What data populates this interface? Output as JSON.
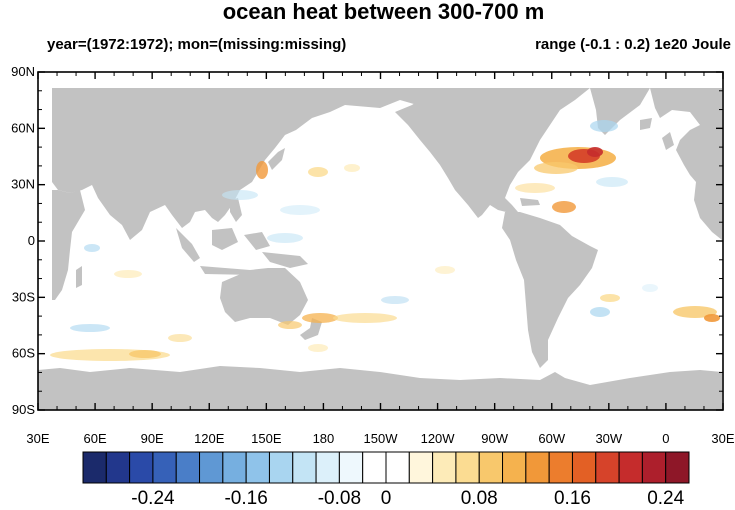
{
  "title": "ocean heat between 300-700 m",
  "subtitle_left": "year=(1972:1972); mon=(missing:missing)",
  "subtitle_right": "range (-0.1 : 0.2) 1e20 Joule",
  "lat_labels": [
    "90N",
    "60N",
    "30N",
    "0",
    "30S",
    "60S",
    "90S"
  ],
  "lon_labels": [
    "30E",
    "60E",
    "90E",
    "120E",
    "150E",
    "180",
    "150W",
    "120W",
    "90W",
    "60W",
    "30W",
    "0",
    "30E"
  ],
  "colorbar": {
    "colors": [
      "#1b2a6b",
      "#22378c",
      "#2a4aa8",
      "#3661b8",
      "#4a7ec8",
      "#5f98d4",
      "#76afe0",
      "#8fc3ea",
      "#a9d5f0",
      "#c3e4f5",
      "#dcf0fa",
      "#eef8fd",
      "#ffffff",
      "#ffffff",
      "#fff6dc",
      "#fdebb8",
      "#fbdc92",
      "#f8c86c",
      "#f5b24e",
      "#f19839",
      "#ec7d2d",
      "#e36025",
      "#d6432a",
      "#c52c2c",
      "#ad1f2c",
      "#8e1728"
    ],
    "tick_labels": [
      "-0.24",
      "-0.16",
      "-0.08",
      "0",
      "0.08",
      "0.16",
      "0.24"
    ]
  },
  "colors": {
    "land": "#c2c2c2",
    "ocean": "#ffffff"
  }
}
